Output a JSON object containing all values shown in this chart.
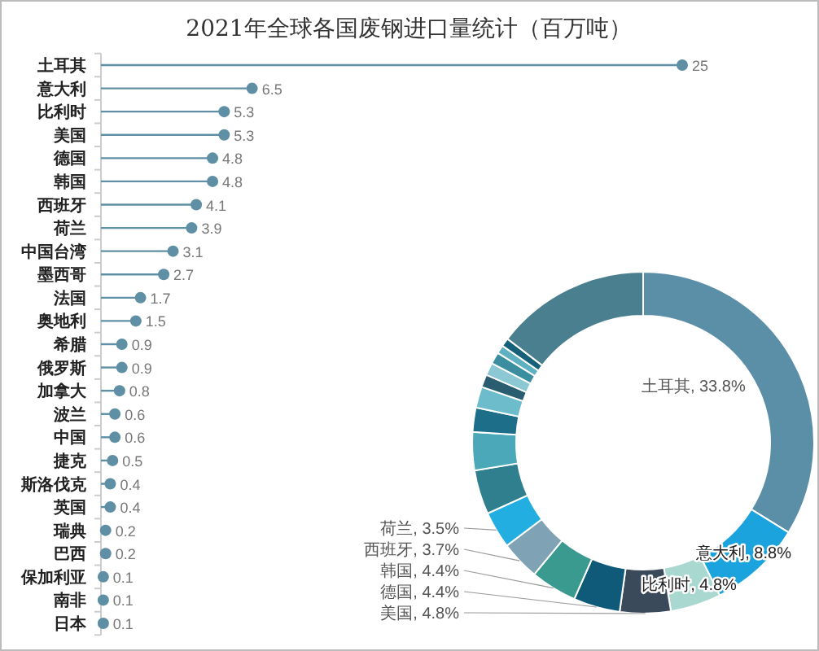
{
  "chart_data": [
    {
      "type": "lollipop",
      "title": "2021年全球各国废钢进口量统计（百万吨）",
      "orientation": "horizontal",
      "color": "#5f8fa5",
      "data_labels": true,
      "marker": "circle",
      "categories": [
        "土耳其",
        "意大利",
        "比利时",
        "美国",
        "德国",
        "韩国",
        "西班牙",
        "荷兰",
        "中国台湾",
        "墨西哥",
        "法国",
        "奥地利",
        "希腊",
        "俄罗斯",
        "加拿大",
        "波兰",
        "中国",
        "捷克",
        "斯洛伐克",
        "英国",
        "瑞典",
        "巴西",
        "保加利亚",
        "南非",
        "日本"
      ],
      "values": [
        25,
        6.5,
        5.3,
        5.3,
        4.8,
        4.8,
        4.1,
        3.9,
        3.1,
        2.7,
        1.7,
        1.5,
        0.9,
        0.9,
        0.8,
        0.6,
        0.6,
        0.5,
        0.4,
        0.4,
        0.2,
        0.2,
        0.1,
        0.1,
        0.1
      ]
    },
    {
      "type": "donut",
      "categories": [
        "土耳其",
        "意大利",
        "比利时",
        "美国",
        "德国",
        "韩国",
        "西班牙",
        "荷兰",
        null,
        null,
        null,
        null,
        null,
        null,
        null,
        null,
        null,
        null
      ],
      "values": [
        33.8,
        8.8,
        4.8,
        4.8,
        4.4,
        4.4,
        3.7,
        3.5,
        4.2,
        3.6,
        2.3,
        2.0,
        1.2,
        1.2,
        1.1,
        0.8,
        0.8,
        14.6
      ],
      "value_labels": [
        "33.8%",
        "8.8%",
        "4.8%",
        "4.8%",
        "4.4%",
        "4.4%",
        "3.7%",
        "3.5%",
        null,
        null,
        null,
        null,
        null,
        null,
        null,
        null,
        null,
        null
      ],
      "colors": [
        "#5b8fa8",
        "#1aa3dc",
        "#a8d8d0",
        "#3a4a5a",
        "#0e5a78",
        "#3a9a90",
        "#7fa3b5",
        "#22aee0",
        "#2f7f8f",
        "#4aa8b8",
        "#1d6e88",
        "#6cbccc",
        "#2a5d70",
        "#8cc8d4",
        "#3b8ea0",
        "#5fb0c0",
        "#17607a",
        "#4a7f90"
      ]
    }
  ]
}
